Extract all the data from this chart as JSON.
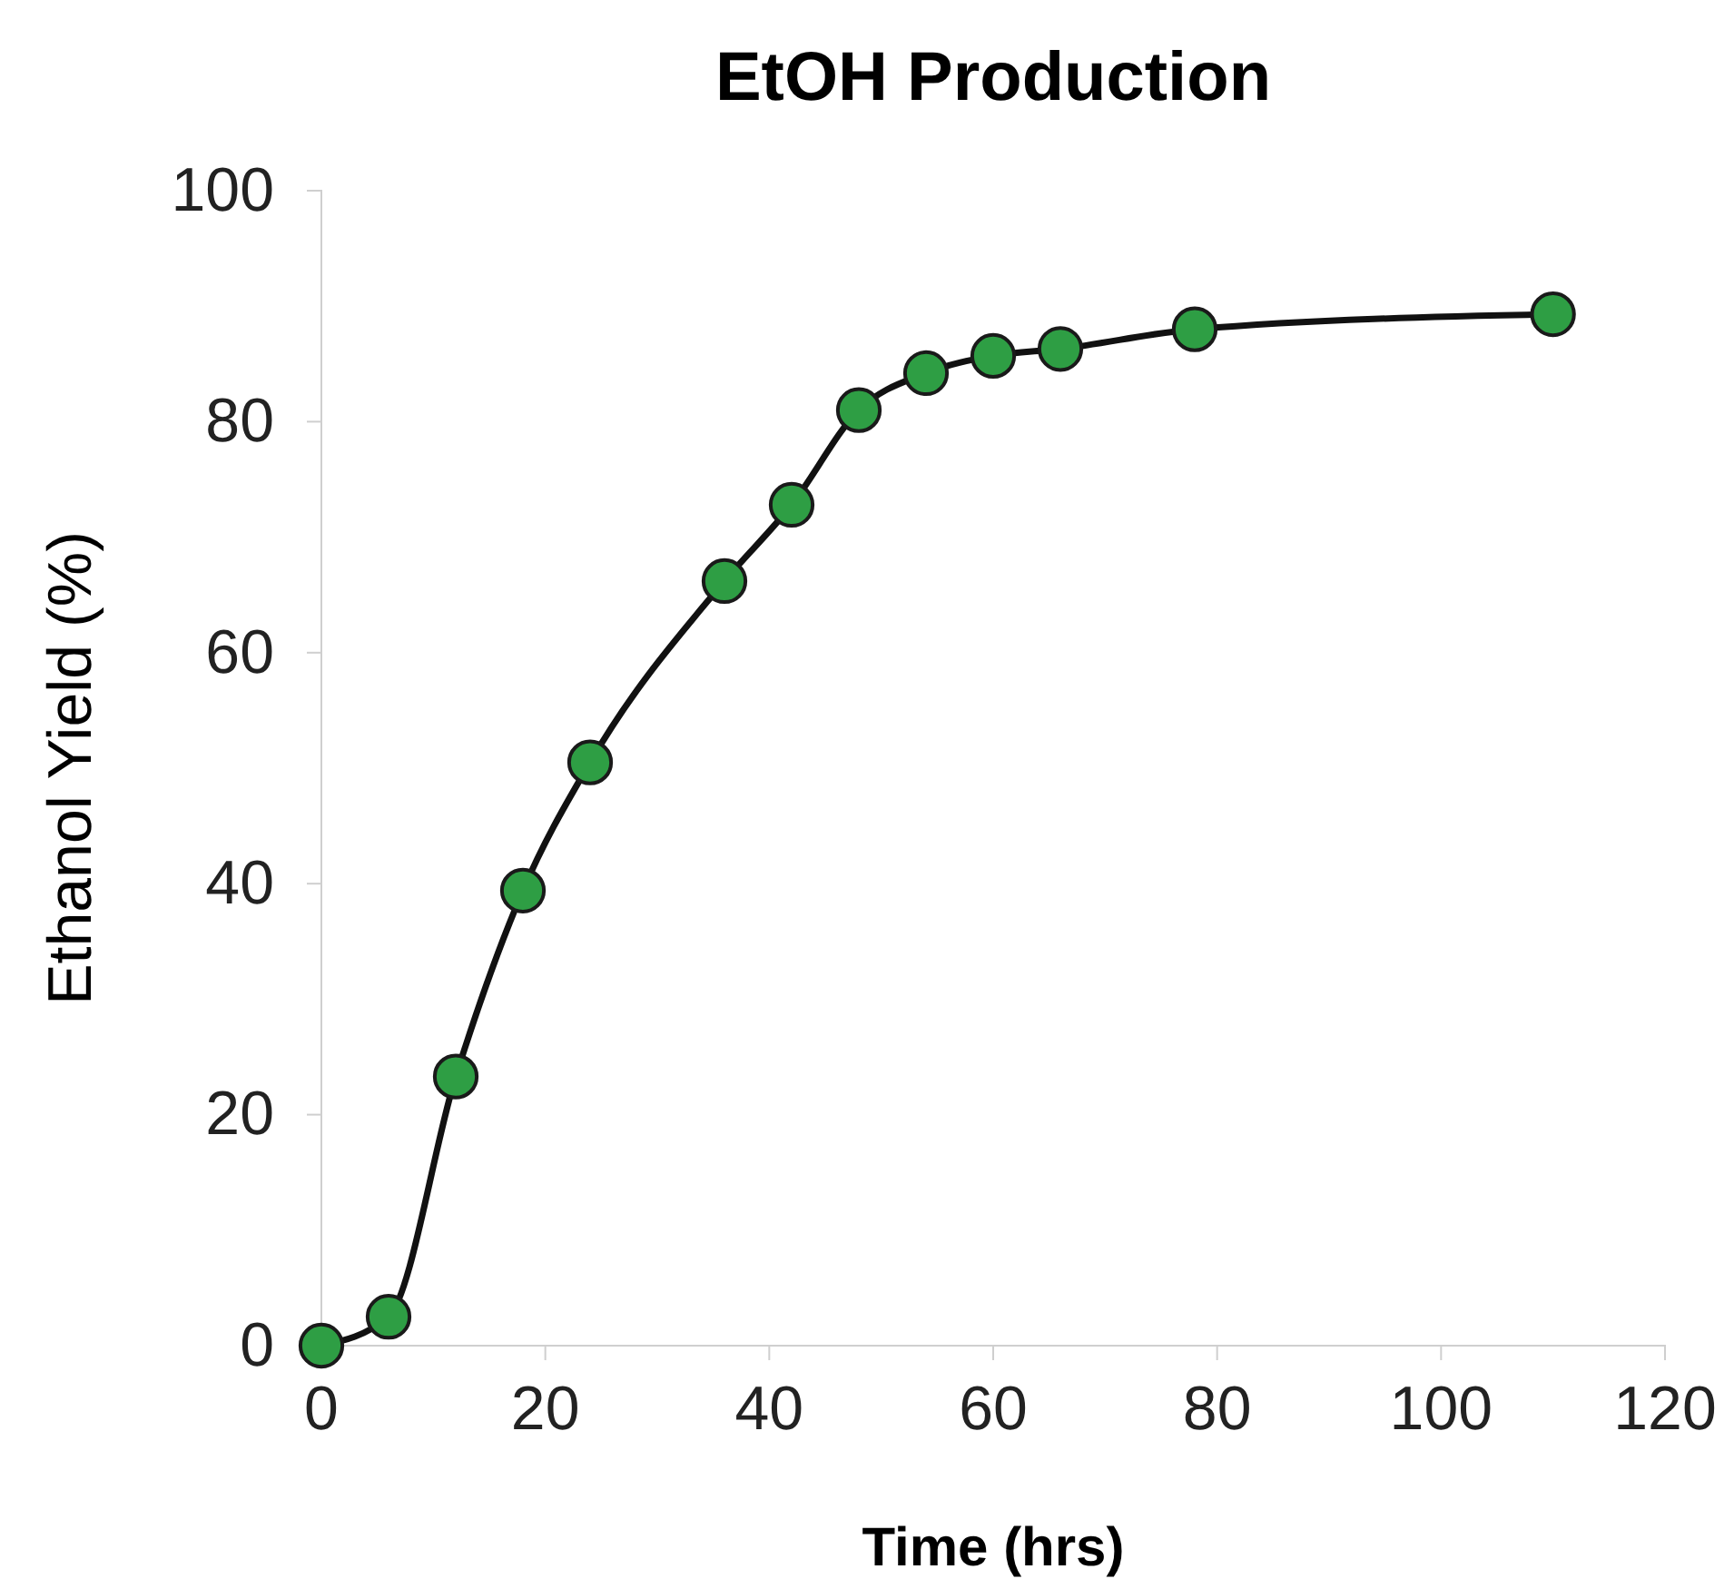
{
  "chart_data": {
    "type": "line",
    "title": "EtOH Production",
    "xlabel": "Time (hrs)",
    "ylabel": "Ethanol Yield (%)",
    "x": [
      0,
      6,
      12,
      18,
      24,
      36,
      42,
      48,
      54,
      60,
      66,
      78,
      110
    ],
    "series": [
      {
        "color": "#2e9e44",
        "values": [
          0,
          2.5,
          23.3,
          39.4,
          50.5,
          66.2,
          72.8,
          81,
          84.2,
          85.7,
          86.3,
          88,
          89.3
        ]
      }
    ],
    "xlim": [
      0,
      120
    ],
    "xticks": [
      0,
      20,
      40,
      60,
      80,
      100,
      120
    ],
    "ylim": [
      0,
      100
    ],
    "yticks": [
      0,
      20,
      40,
      60,
      80,
      100
    ],
    "grid": false,
    "marker": "circle",
    "line_style": "solid"
  }
}
